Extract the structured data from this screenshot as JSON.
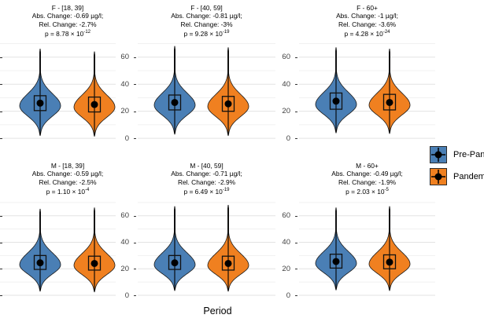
{
  "figure": {
    "xlabel": "Period"
  },
  "chart_data": {
    "type": "violin",
    "xlabel": "Period",
    "ylabel": "",
    "yticks": [
      0,
      20,
      40,
      60
    ],
    "ylim": [
      -9.5,
      70.5
    ],
    "grid": "horizontal gridlines, minor at 10/30/50/70, no panel border",
    "legend_position": "right (clipped at image edge)",
    "legend": [
      {
        "label": "Pre-Pan",
        "color": "#4a7fb5"
      },
      {
        "label": "Pandem",
        "color": "#f08020"
      }
    ],
    "facets": [
      {
        "title": "F - [18, 39]",
        "abs_change": "Abs. Change: -0.69 µg/l;",
        "rel_change": "Rel. Change: -2.7%",
        "p_base": "p = 8.78 × 10",
        "p_exp": "-12",
        "groups": [
          {
            "name": "Pre-Pan",
            "median": 26,
            "q1": 20.5,
            "q3": 31.5,
            "min": 2,
            "max": 66,
            "peak": 24
          },
          {
            "name": "Pandem",
            "median": 25,
            "q1": 19.5,
            "q3": 30.5,
            "min": 1.5,
            "max": 64,
            "peak": 23
          }
        ]
      },
      {
        "title": "F - [40, 59]",
        "abs_change": "Abs. Change: -0.81 µg/l;",
        "rel_change": "Rel. Change: -3%",
        "p_base": "p = 9.28 × 10",
        "p_exp": "-19",
        "groups": [
          {
            "name": "Pre-Pan",
            "median": 26.5,
            "q1": 21,
            "q3": 32,
            "min": 3,
            "max": 68,
            "peak": 24.5
          },
          {
            "name": "Pandem",
            "median": 25.5,
            "q1": 20,
            "q3": 31,
            "min": 2,
            "max": 67,
            "peak": 23.5
          }
        ]
      },
      {
        "title": "F - 60+",
        "abs_change": "Abs. Change: -1 µg/l;",
        "rel_change": "Rel. Change: -3.6%",
        "p_base": "p = 4.28 × 10",
        "p_exp": "-24",
        "groups": [
          {
            "name": "Pre-Pan",
            "median": 27.5,
            "q1": 21.5,
            "q3": 33.5,
            "min": 4,
            "max": 67,
            "peak": 25
          },
          {
            "name": "Pandem",
            "median": 26.5,
            "q1": 21,
            "q3": 32.5,
            "min": 3.5,
            "max": 66,
            "peak": 24.5
          }
        ]
      },
      {
        "title": "M - [18, 39]",
        "abs_change": "Abs. Change: -0.59 µg/l;",
        "rel_change": "Rel. Change: -2.5%",
        "p_base": "p = 1.10 × 10",
        "p_exp": "-4",
        "groups": [
          {
            "name": "Pre-Pan",
            "median": 24.5,
            "q1": 19.5,
            "q3": 30,
            "min": 3,
            "max": 65,
            "peak": 23
          },
          {
            "name": "Pandem",
            "median": 24,
            "q1": 19,
            "q3": 29.5,
            "min": 2.5,
            "max": 66,
            "peak": 22.5
          }
        ]
      },
      {
        "title": "M - [40, 59]",
        "abs_change": "Abs. Change: -0.71 µg/l;",
        "rel_change": "Rel. Change: -2.9%",
        "p_base": "p = 6.49 × 10",
        "p_exp": "-19",
        "groups": [
          {
            "name": "Pre-Pan",
            "median": 24.5,
            "q1": 19.5,
            "q3": 30,
            "min": 3.5,
            "max": 67,
            "peak": 23
          },
          {
            "name": "Pandem",
            "median": 24,
            "q1": 19,
            "q3": 29.5,
            "min": 3,
            "max": 68,
            "peak": 22.5
          }
        ]
      },
      {
        "title": "M - 60+",
        "abs_change": "Abs. Change: -0.49 µg/l;",
        "rel_change": "Rel. Change: -1.9%",
        "p_base": "p = 2.03 × 10",
        "p_exp": "-5",
        "groups": [
          {
            "name": "Pre-Pan",
            "median": 25.5,
            "q1": 20.5,
            "q3": 31,
            "min": 4,
            "max": 66,
            "peak": 24
          },
          {
            "name": "Pandem",
            "median": 25,
            "q1": 20,
            "q3": 30.5,
            "min": 3.5,
            "max": 67,
            "peak": 23.5
          }
        ]
      }
    ]
  },
  "colors": {
    "pre_pandemic": "#4a7fb5",
    "pandemic": "#f08020",
    "grid_major": "#e3e3e3",
    "grid_minor": "#f1f1f1",
    "outline": "#1a1a1a",
    "tick_text": "#404040"
  }
}
